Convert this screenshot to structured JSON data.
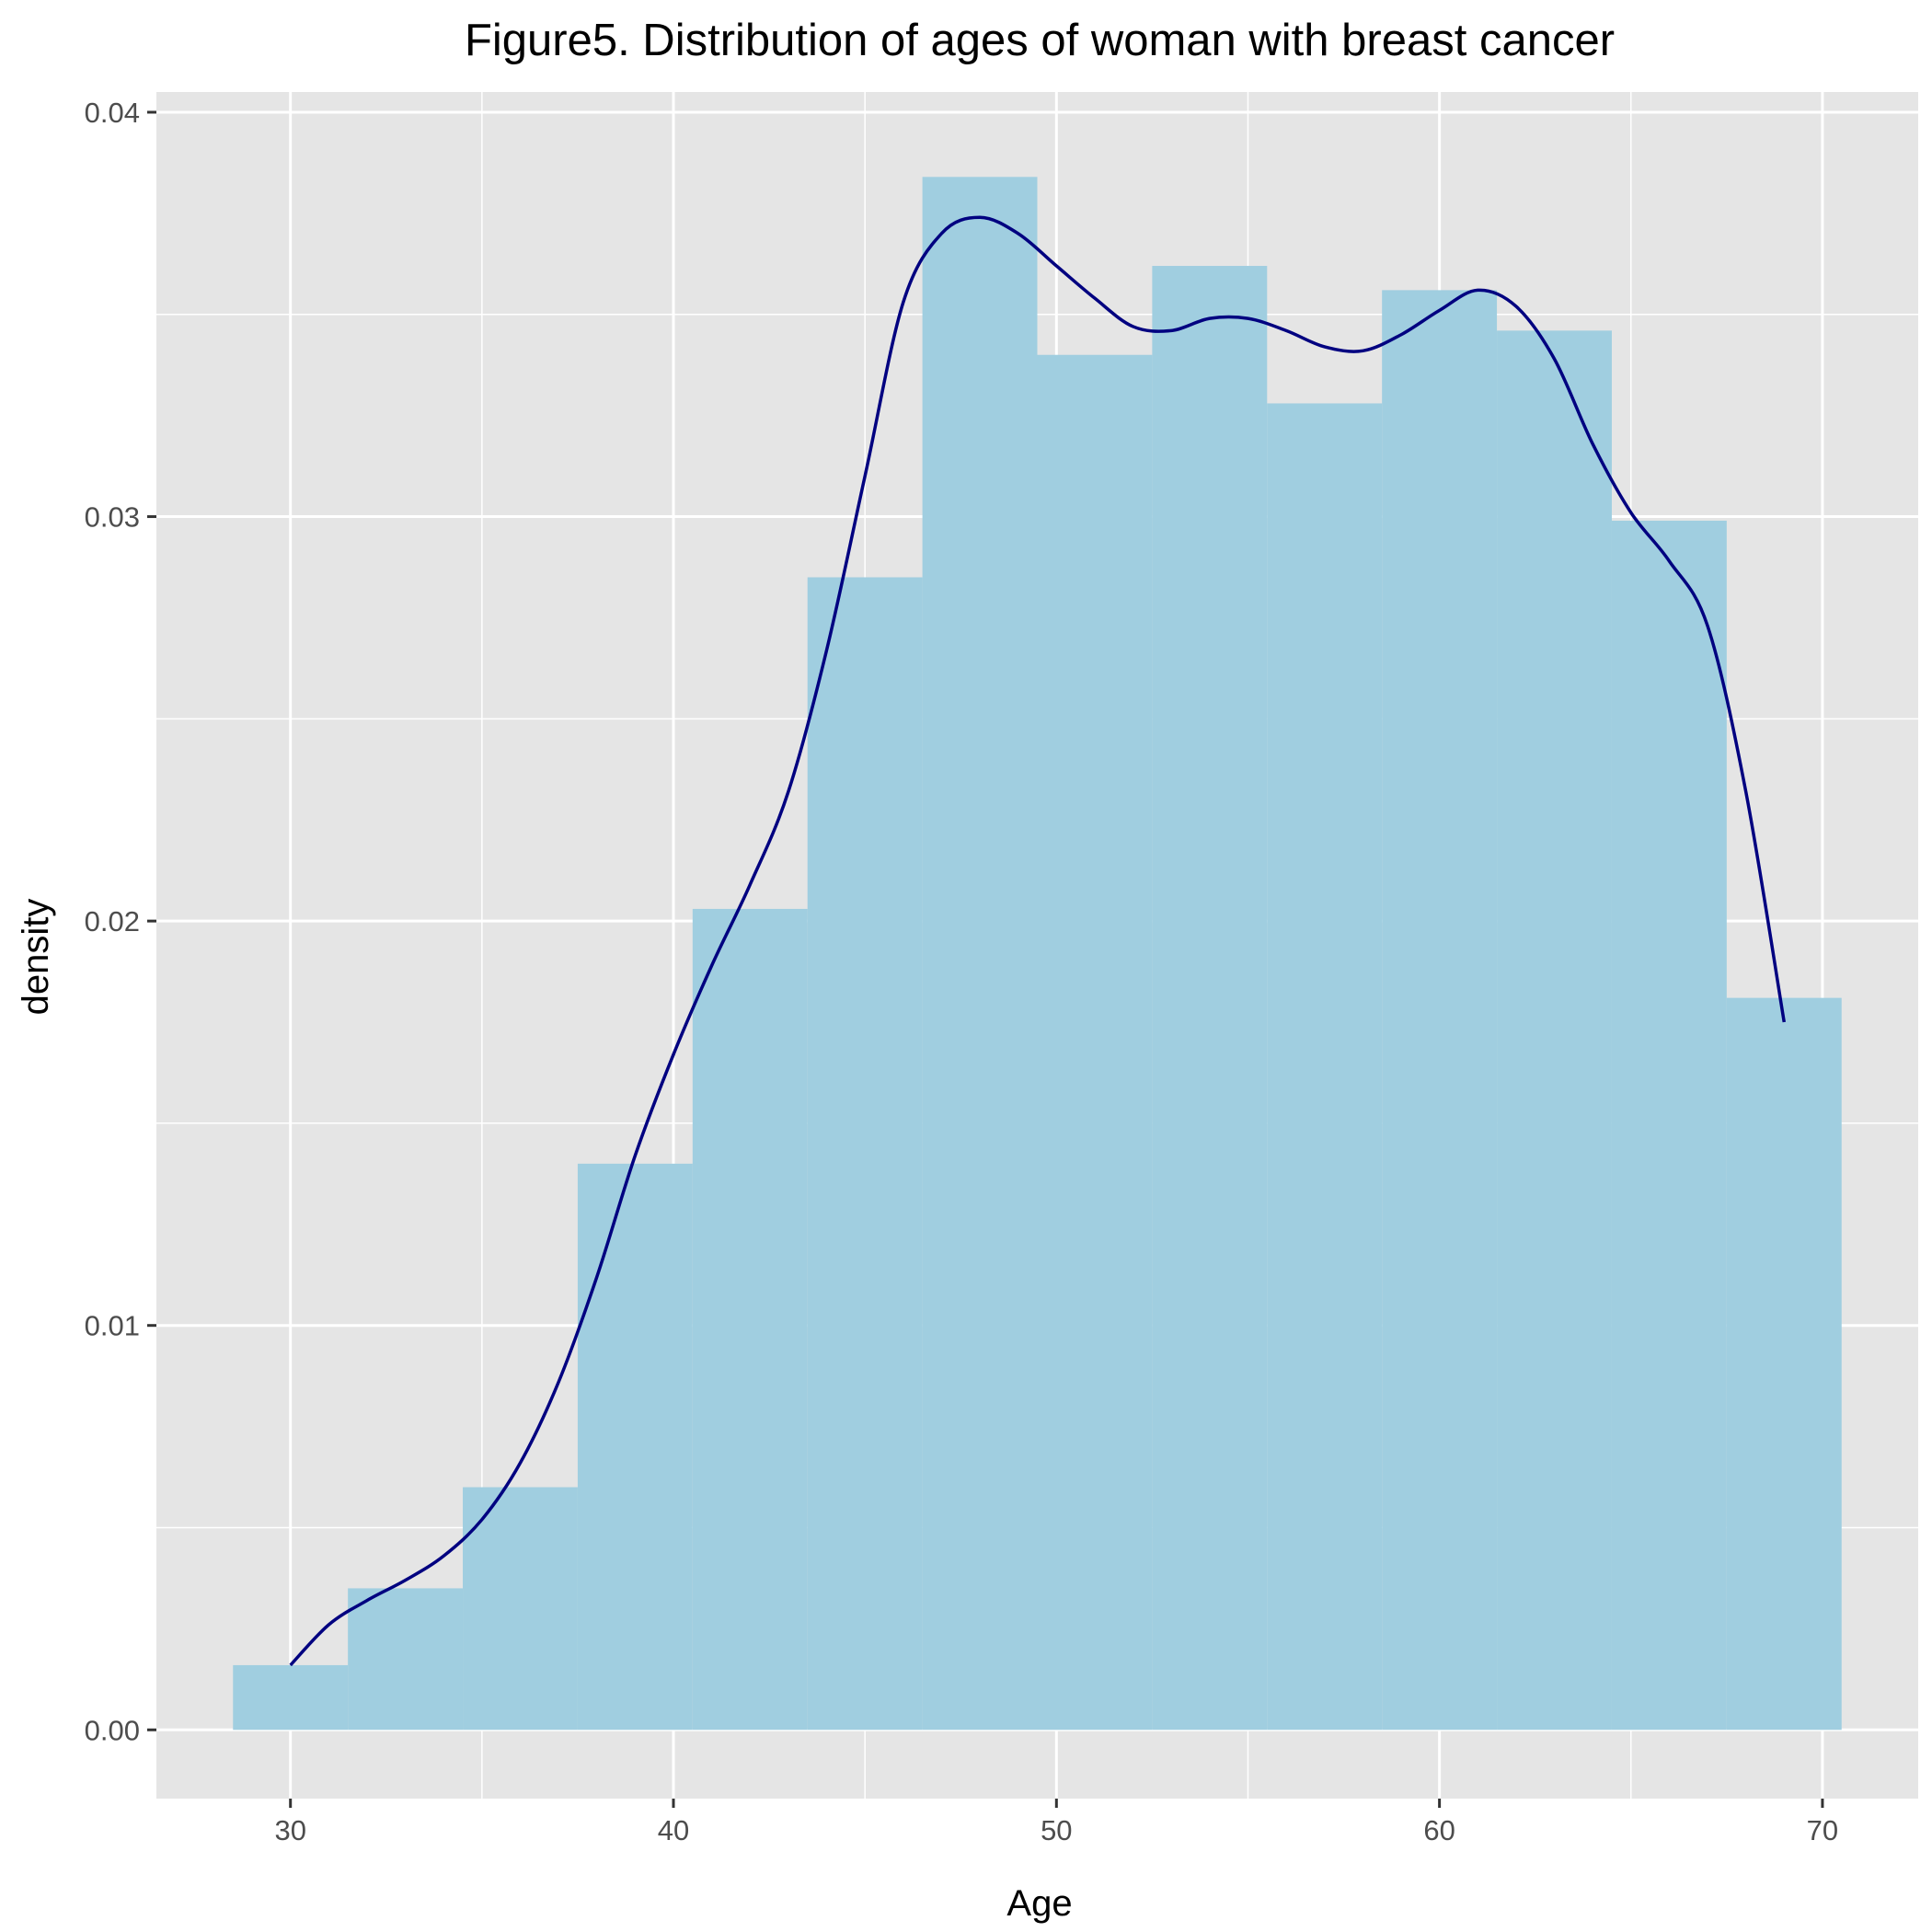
{
  "chart_data": {
    "type": "bar",
    "subtype": "histogram-with-density",
    "title": "Figure5. Distribution of ages of woman with breast cancer",
    "xlabel": "Age",
    "ylabel": "density",
    "xlim": [
      26.5,
      72.5
    ],
    "ylim": [
      -0.0017,
      0.0405
    ],
    "x_ticks": [
      30,
      40,
      50,
      60,
      70
    ],
    "x_tick_labels": [
      "30",
      "40",
      "50",
      "60",
      "70"
    ],
    "y_ticks": [
      0,
      0.01,
      0.02,
      0.03,
      0.04
    ],
    "y_tick_labels": [
      "0.00",
      "0.01",
      "0.02",
      "0.03",
      "0.04"
    ],
    "grid": true,
    "bins": [
      {
        "x0": 28.5,
        "x1": 31.5,
        "value": 0.0016
      },
      {
        "x0": 31.5,
        "x1": 34.5,
        "value": 0.0035
      },
      {
        "x0": 34.5,
        "x1": 37.5,
        "value": 0.006
      },
      {
        "x0": 37.5,
        "x1": 40.5,
        "value": 0.014
      },
      {
        "x0": 40.5,
        "x1": 43.5,
        "value": 0.0203
      },
      {
        "x0": 43.5,
        "x1": 46.5,
        "value": 0.0285
      },
      {
        "x0": 46.5,
        "x1": 49.5,
        "value": 0.0384
      },
      {
        "x0": 49.5,
        "x1": 52.5,
        "value": 0.034
      },
      {
        "x0": 52.5,
        "x1": 55.5,
        "value": 0.0362
      },
      {
        "x0": 55.5,
        "x1": 58.5,
        "value": 0.0328
      },
      {
        "x0": 58.5,
        "x1": 61.5,
        "value": 0.0356
      },
      {
        "x0": 61.5,
        "x1": 64.5,
        "value": 0.0346
      },
      {
        "x0": 64.5,
        "x1": 67.5,
        "value": 0.0299
      },
      {
        "x0": 67.5,
        "x1": 70.5,
        "value": 0.0181
      }
    ],
    "density_curve": {
      "x": [
        30,
        31,
        32,
        33,
        34,
        35,
        36,
        37,
        38,
        39,
        40,
        41,
        42,
        43,
        44,
        45,
        46,
        47,
        48,
        49,
        50,
        51,
        52,
        53,
        54,
        55,
        56,
        57,
        58,
        59,
        60,
        61,
        62,
        63,
        64,
        65,
        66,
        67,
        68,
        69
      ],
      "y": [
        0.0016,
        0.0026,
        0.0032,
        0.0037,
        0.0043,
        0.0052,
        0.0066,
        0.0086,
        0.0112,
        0.0142,
        0.0167,
        0.0189,
        0.0209,
        0.0232,
        0.0267,
        0.031,
        0.0353,
        0.037,
        0.0374,
        0.037,
        0.0362,
        0.0354,
        0.0347,
        0.0346,
        0.0349,
        0.0349,
        0.0346,
        0.0342,
        0.0341,
        0.0345,
        0.0351,
        0.0356,
        0.0352,
        0.0339,
        0.0318,
        0.0301,
        0.0289,
        0.0273,
        0.0232,
        0.0175
      ]
    },
    "colors": {
      "panel_background": "#e5e5e5",
      "grid": "#ffffff",
      "bar_fill": "#a0cee0",
      "curve": "#000080",
      "tick_line": "#333333"
    }
  }
}
